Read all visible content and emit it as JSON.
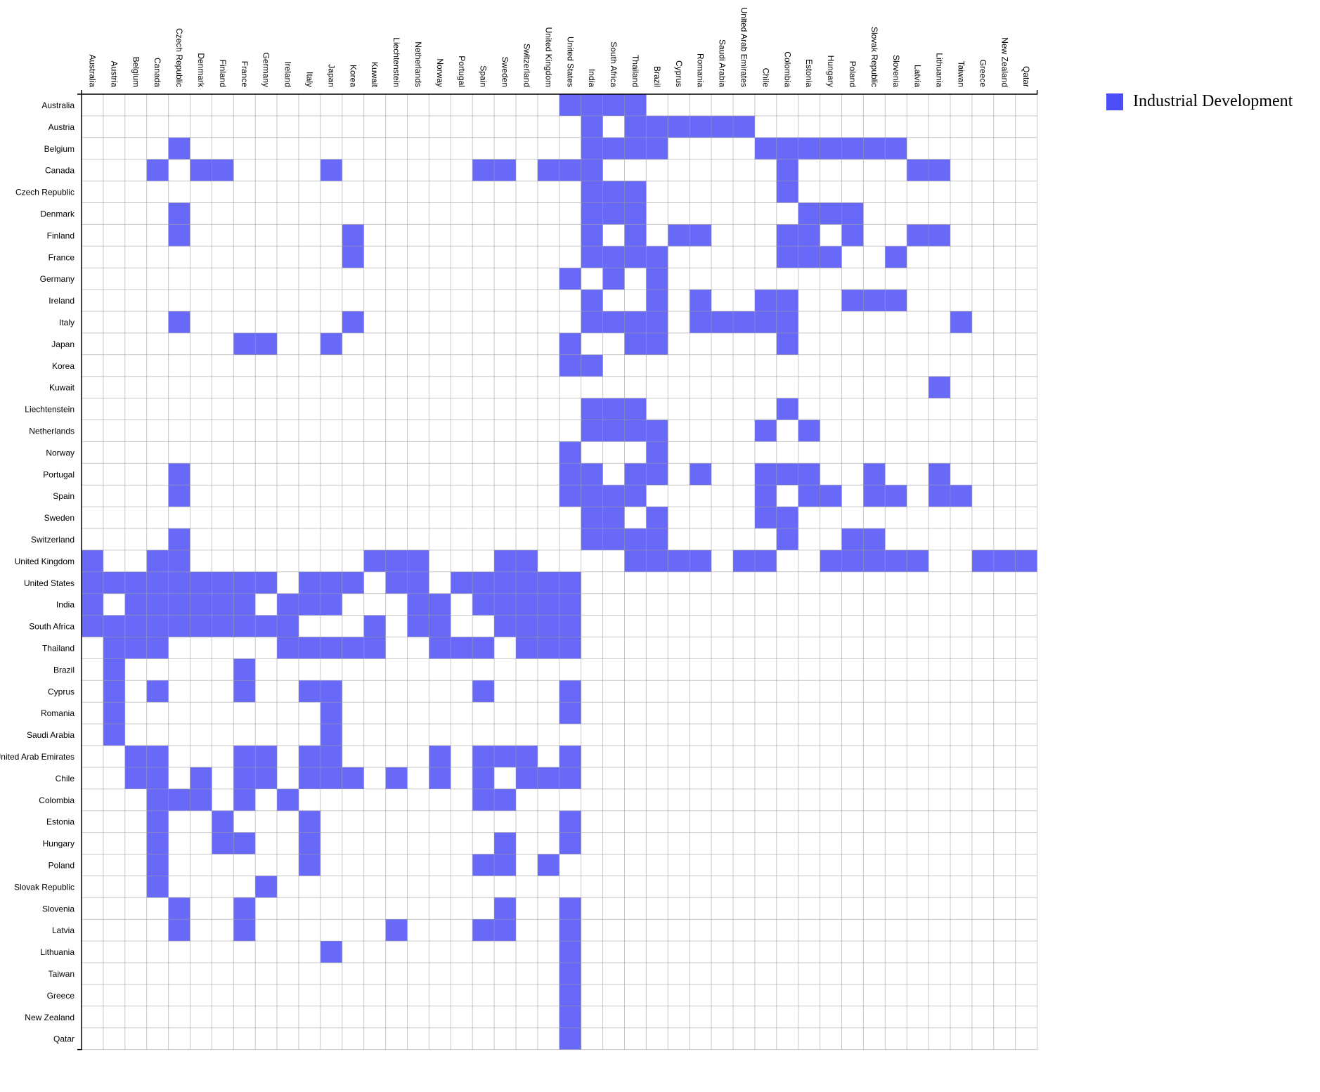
{
  "colors": {
    "cell": "#4d4df8",
    "grid": "#999999",
    "axis": "#000000"
  },
  "legend": {
    "label": "Industrial Development"
  },
  "chart_data": {
    "type": "heatmap",
    "title": "",
    "xlabel": "",
    "ylabel": "",
    "legend_position": "top-right",
    "grid": true,
    "countries": [
      "Australia",
      "Austria",
      "Belgium",
      "Canada",
      "Czech Republic",
      "Denmark",
      "Finland",
      "France",
      "Germany",
      "Ireland",
      "Italy",
      "Japan",
      "Korea",
      "Kuwait",
      "Liechtenstein",
      "Netherlands",
      "Norway",
      "Portugal",
      "Spain",
      "Sweden",
      "Switzerland",
      "United Kingdom",
      "United States",
      "India",
      "South Africa",
      "Thailand",
      "Brazil",
      "Cyprus",
      "Romania",
      "Saudi Arabia",
      "United Arab Emirates",
      "Chile",
      "Colombia",
      "Estonia",
      "Hungary",
      "Poland",
      "Slovak Republic",
      "Slovenia",
      "Latvia",
      "Lithuania",
      "Taiwan",
      "Greece",
      "New Zealand",
      "Qatar"
    ],
    "matrix": [
      "00000000000000000000001111000000000000000000",
      "00000000000000000000000101111110000000000000",
      "00001000000000000000000111100001111111000000",
      "00010110000100000011011100000000100000110000",
      "00000000000000000000000111000000100000000000",
      "00001000000000000000000111000000011100000000",
      "00001000000010000000000101011000110100110000",
      "00000000000010000000000111100000111001000000",
      "00000000000000000000001010100000000000000000",
      "00000000000000000000000100101001100111000000",
      "00001000000010000000000111101111100000001000",
      "00000001100100000000001001100000100000000000",
      "00000000000000000000001100000000000000000000",
      "00000000000000000000000000000000000000010000",
      "00000000000000000000000111000000100000000000",
      "00000000000000000000000111100001010000000000",
      "00000000000000000000001000100000000000000000",
      "00001000000000000000001101101001110010010000",
      "00001000000000000000001111000001011011011000",
      "00000000000000000000000110100001100000000000",
      "00001000000000000000000111100000100110000000",
      "10011000000001110001100001111011001111100111",
      "11111111101110110111111000000000000000000000",
      "10111111011100011011111000000000000000000000",
      "11111111110001011001111000000000000000000000",
      "01110000011111001110111000000000000000000000",
      "01000001000000000000000000000000000000000000",
      "01010001001100000010001000000000000000000000",
      "01000000000100000000001000000000000000000000",
      "01000000000100000000000000000000000000000000",
      "00110001101100001011101000000000000000000000",
      "00110101101110101010111000000000000000000000",
      "00011101010000000011000000000000000000000000",
      "00010010001000000000001000000000000000000000",
      "00010011001000000001001000000000000000000000",
      "00010000001000000011010000000000000000000000",
      "00010000100000000000000000000000000000000000",
      "00001001000000000001001000000000000000000000",
      "00001001000000100011001000000000000000000000",
      "00000000000100000000001000000000000000000000",
      "00000000000000000000001000000000000000000000",
      "00000000000000000000001000000000000000000000",
      "00000000000000000000001000000000000000000000",
      "00000000000000000000001000000000000000000000"
    ]
  }
}
